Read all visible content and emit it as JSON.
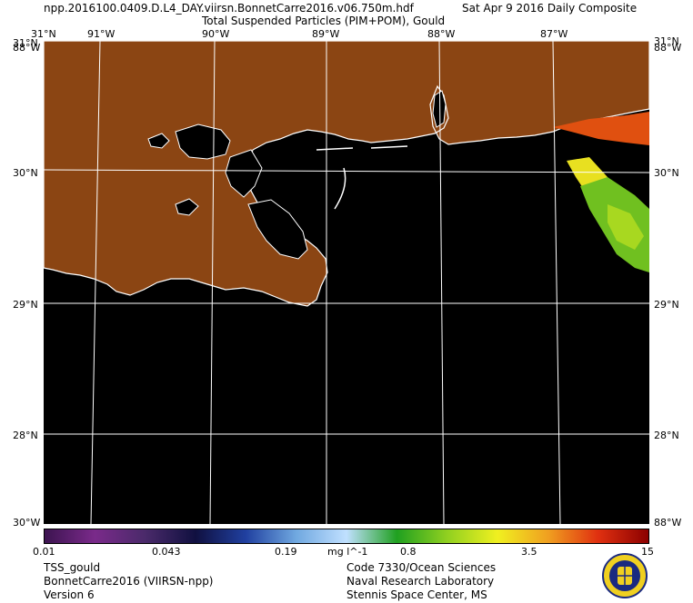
{
  "header": {
    "filename": "npp.2016100.0409.D.L4_DAY.viirsn.BonnetCarre2016.v06.750m.hdf",
    "date": "Sat Apr  9 2016 Daily Composite",
    "product": "Total Suspended Particles (PIM+POM), Gould"
  },
  "map": {
    "top_labels": [
      "31°N",
      "91°W",
      "90°W",
      "89°W",
      "88°W",
      "87°W",
      "31°N"
    ],
    "right_labels": [
      "30°N",
      "29°N",
      "28°N"
    ],
    "left_labels": [
      "30°N",
      "29°N",
      "28°N"
    ],
    "corner_top_left": "31°N",
    "corner_top_left_w": "88°W",
    "corner_top_right": "31°N",
    "corner_top_right_w": "88°W",
    "corner_bottom_left": "30°W",
    "corner_bottom_right": "88°W",
    "colors": {
      "land": "#8b4513",
      "water": "#000000",
      "coast": "#ffffff",
      "grid": "#ffffff"
    }
  },
  "colorbar": {
    "ticks": [
      "0.01",
      "0.043",
      "0.19",
      "0.8",
      "3.5",
      "15"
    ],
    "units": "mg l^-1",
    "colors": [
      "#3c1450",
      "#7a2a8a",
      "#4a2a6a",
      "#101040",
      "#2040a0",
      "#70a8e0",
      "#c0e0ff",
      "#20a020",
      "#90d020",
      "#f0f020",
      "#f0a020",
      "#e03010",
      "#8b0000"
    ]
  },
  "footer": {
    "left": [
      "TSS_gould",
      "BonnetCarre2016 (VIIRSN-npp)",
      "Version 6"
    ],
    "right": [
      "Code 7330/Ocean Sciences",
      "Naval Research Laboratory",
      "Stennis Space Center, MS"
    ],
    "seal_icon": "nrl-seal-icon"
  }
}
